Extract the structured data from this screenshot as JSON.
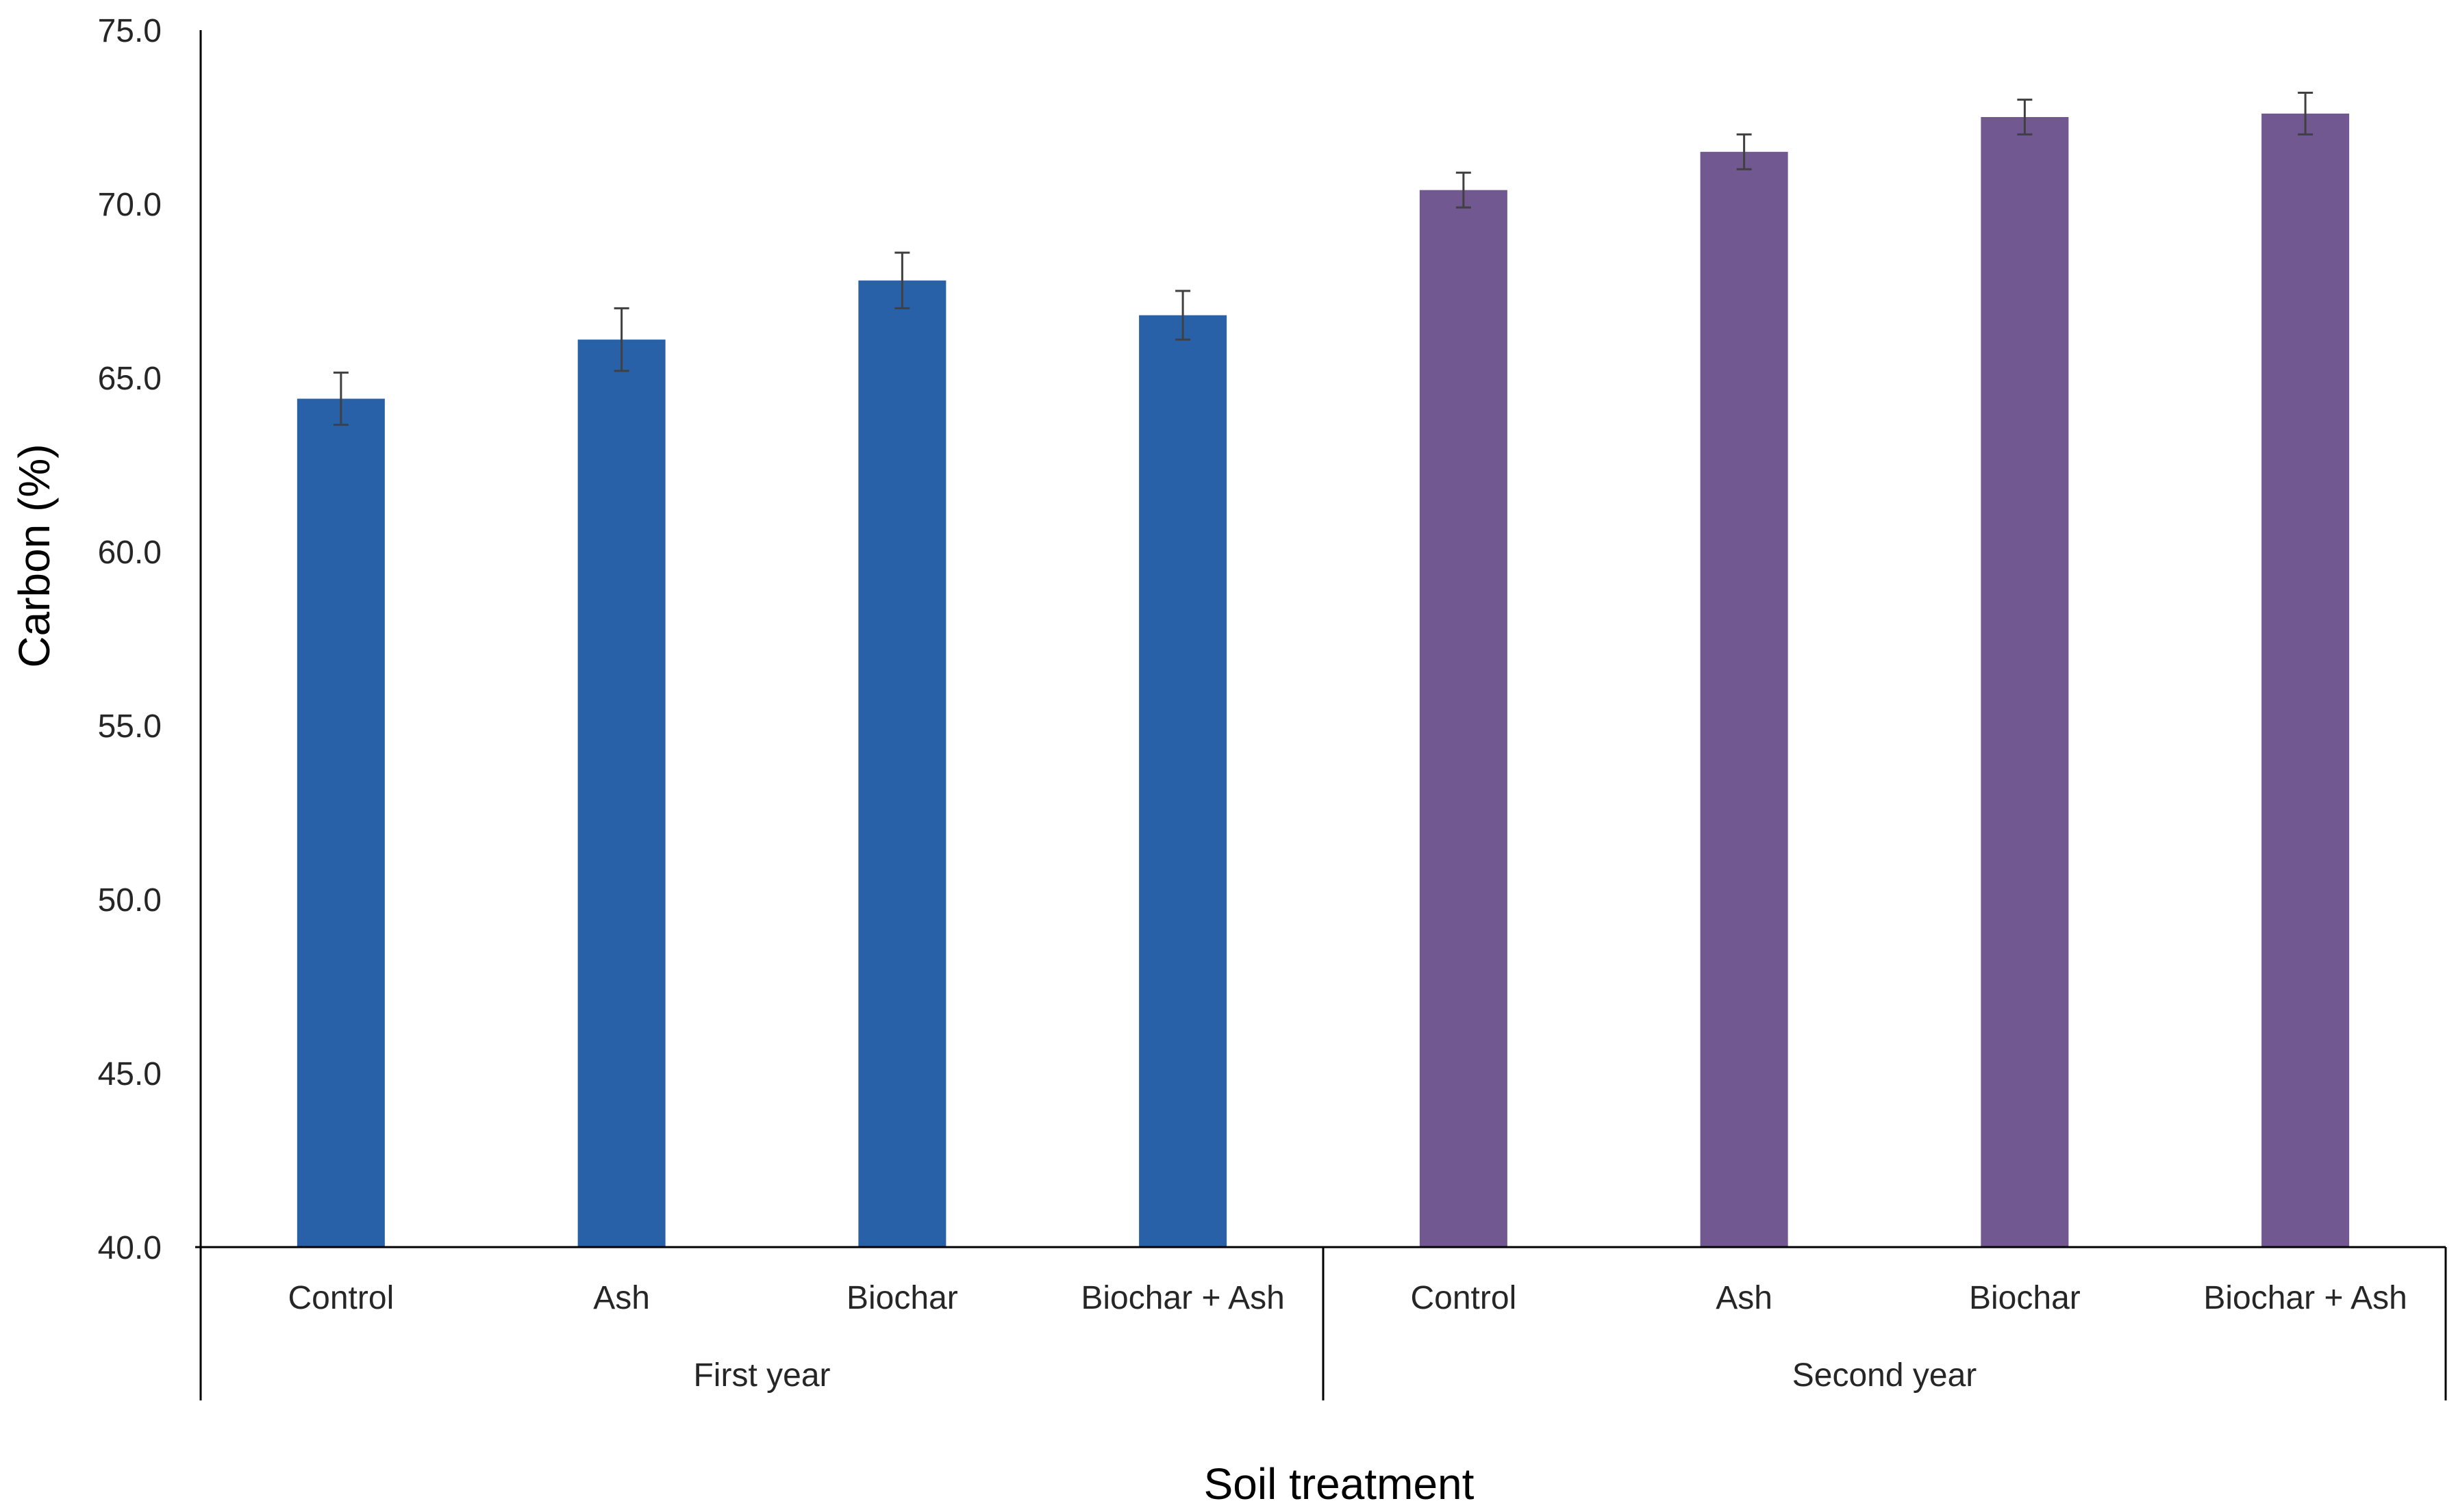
{
  "chart_data": {
    "type": "bar",
    "xlabel": "Soil treatment",
    "ylabel": "Carbon (%)",
    "ylim": [
      40.0,
      75.0
    ],
    "y_ticks": [
      "40.0",
      "45.0",
      "50.0",
      "55.0",
      "60.0",
      "65.0",
      "70.0",
      "75.0"
    ],
    "grid": false,
    "groups": [
      {
        "name": "First year",
        "color": "#2961A9",
        "categories": [
          "Control",
          "Ash",
          "Biochar",
          "Biochar + Ash"
        ],
        "values": [
          64.4,
          66.1,
          67.8,
          66.8
        ],
        "errors": [
          0.75,
          0.9,
          0.8,
          0.7
        ]
      },
      {
        "name": "Second year",
        "color": "#715891",
        "categories": [
          "Control",
          "Ash",
          "Biochar",
          "Biochar + Ash"
        ],
        "values": [
          70.4,
          71.5,
          72.5,
          72.6
        ],
        "errors": [
          0.5,
          0.5,
          0.5,
          0.6
        ]
      }
    ]
  }
}
